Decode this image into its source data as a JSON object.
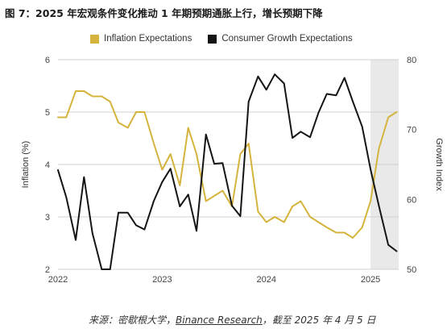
{
  "figure": {
    "title": "图 7：2025 年宏观条件变化推动 1 年期预期通胀上行，增长预期下降",
    "source_prefix": "来源：密歇根大学，",
    "source_link": "Binance Research",
    "source_suffix": "，截至 2025 年 4 月 5 日"
  },
  "chart_data": {
    "type": "line",
    "title": "",
    "xlabel": "",
    "ylabel_left": "Inflation (%)",
    "ylabel_right": "Growth Index",
    "ylim_left": [
      2,
      6
    ],
    "ylim_right": [
      50,
      80
    ],
    "yticks_left": [
      "2",
      "3",
      "4",
      "5",
      "6"
    ],
    "yticks_right": [
      "50",
      "60",
      "70",
      "80"
    ],
    "xlim": [
      2022.0,
      2025.27
    ],
    "xticks": [
      {
        "label": "2022",
        "value": 2022.0
      },
      {
        "label": "2023",
        "value": 2023.0
      },
      {
        "label": "2024",
        "value": 2024.0
      },
      {
        "label": "2025",
        "value": 2025.0
      }
    ],
    "grid": "horizontal",
    "legend_position": "top",
    "highlight_range": [
      2025.0,
      2025.27
    ],
    "highlight_color": "#e9e9e9",
    "series": [
      {
        "name": "Inflation Expectations",
        "axis": "left",
        "color": "#d4b43c",
        "x": [
          2022.0,
          2022.08,
          2022.17,
          2022.25,
          2022.33,
          2022.42,
          2022.5,
          2022.58,
          2022.67,
          2022.75,
          2022.83,
          2022.92,
          2023.0,
          2023.08,
          2023.17,
          2023.25,
          2023.33,
          2023.42,
          2023.5,
          2023.58,
          2023.67,
          2023.75,
          2023.83,
          2023.92,
          2024.0,
          2024.08,
          2024.17,
          2024.25,
          2024.33,
          2024.42,
          2024.5,
          2024.58,
          2024.67,
          2024.75,
          2024.83,
          2024.92,
          2025.0,
          2025.08,
          2025.17,
          2025.25
        ],
        "values": [
          4.9,
          4.9,
          5.4,
          5.4,
          5.3,
          5.3,
          5.2,
          4.8,
          4.7,
          5.0,
          5.0,
          4.4,
          3.9,
          4.2,
          3.6,
          4.7,
          4.2,
          3.3,
          3.4,
          3.5,
          3.2,
          4.2,
          4.4,
          3.1,
          2.9,
          3.0,
          2.9,
          3.2,
          3.3,
          3.0,
          2.9,
          2.8,
          2.7,
          2.7,
          2.6,
          2.8,
          3.3,
          4.3,
          4.9,
          5.0
        ]
      },
      {
        "name": "Consumer Growth Expectations",
        "axis": "right",
        "color": "#141414",
        "x": [
          2022.0,
          2022.08,
          2022.17,
          2022.25,
          2022.33,
          2022.42,
          2022.5,
          2022.58,
          2022.67,
          2022.75,
          2022.83,
          2022.92,
          2023.0,
          2023.08,
          2023.17,
          2023.25,
          2023.33,
          2023.42,
          2023.5,
          2023.58,
          2023.67,
          2023.75,
          2023.83,
          2023.92,
          2024.0,
          2024.08,
          2024.17,
          2024.25,
          2024.33,
          2024.42,
          2024.5,
          2024.58,
          2024.67,
          2024.75,
          2024.83,
          2024.92,
          2025.0,
          2025.08,
          2025.17,
          2025.25
        ],
        "values": [
          64.2,
          60.3,
          54.2,
          63.2,
          55.2,
          50.0,
          50.0,
          58.1,
          58.1,
          56.3,
          55.7,
          59.8,
          62.5,
          64.4,
          59.0,
          60.7,
          55.5,
          69.3,
          65.1,
          65.2,
          59.1,
          57.6,
          74.0,
          77.6,
          75.7,
          77.9,
          76.6,
          68.8,
          69.7,
          68.9,
          72.4,
          75.1,
          74.9,
          77.4,
          74.0,
          70.4,
          64.3,
          59.1,
          53.5,
          52.6
        ]
      }
    ]
  }
}
